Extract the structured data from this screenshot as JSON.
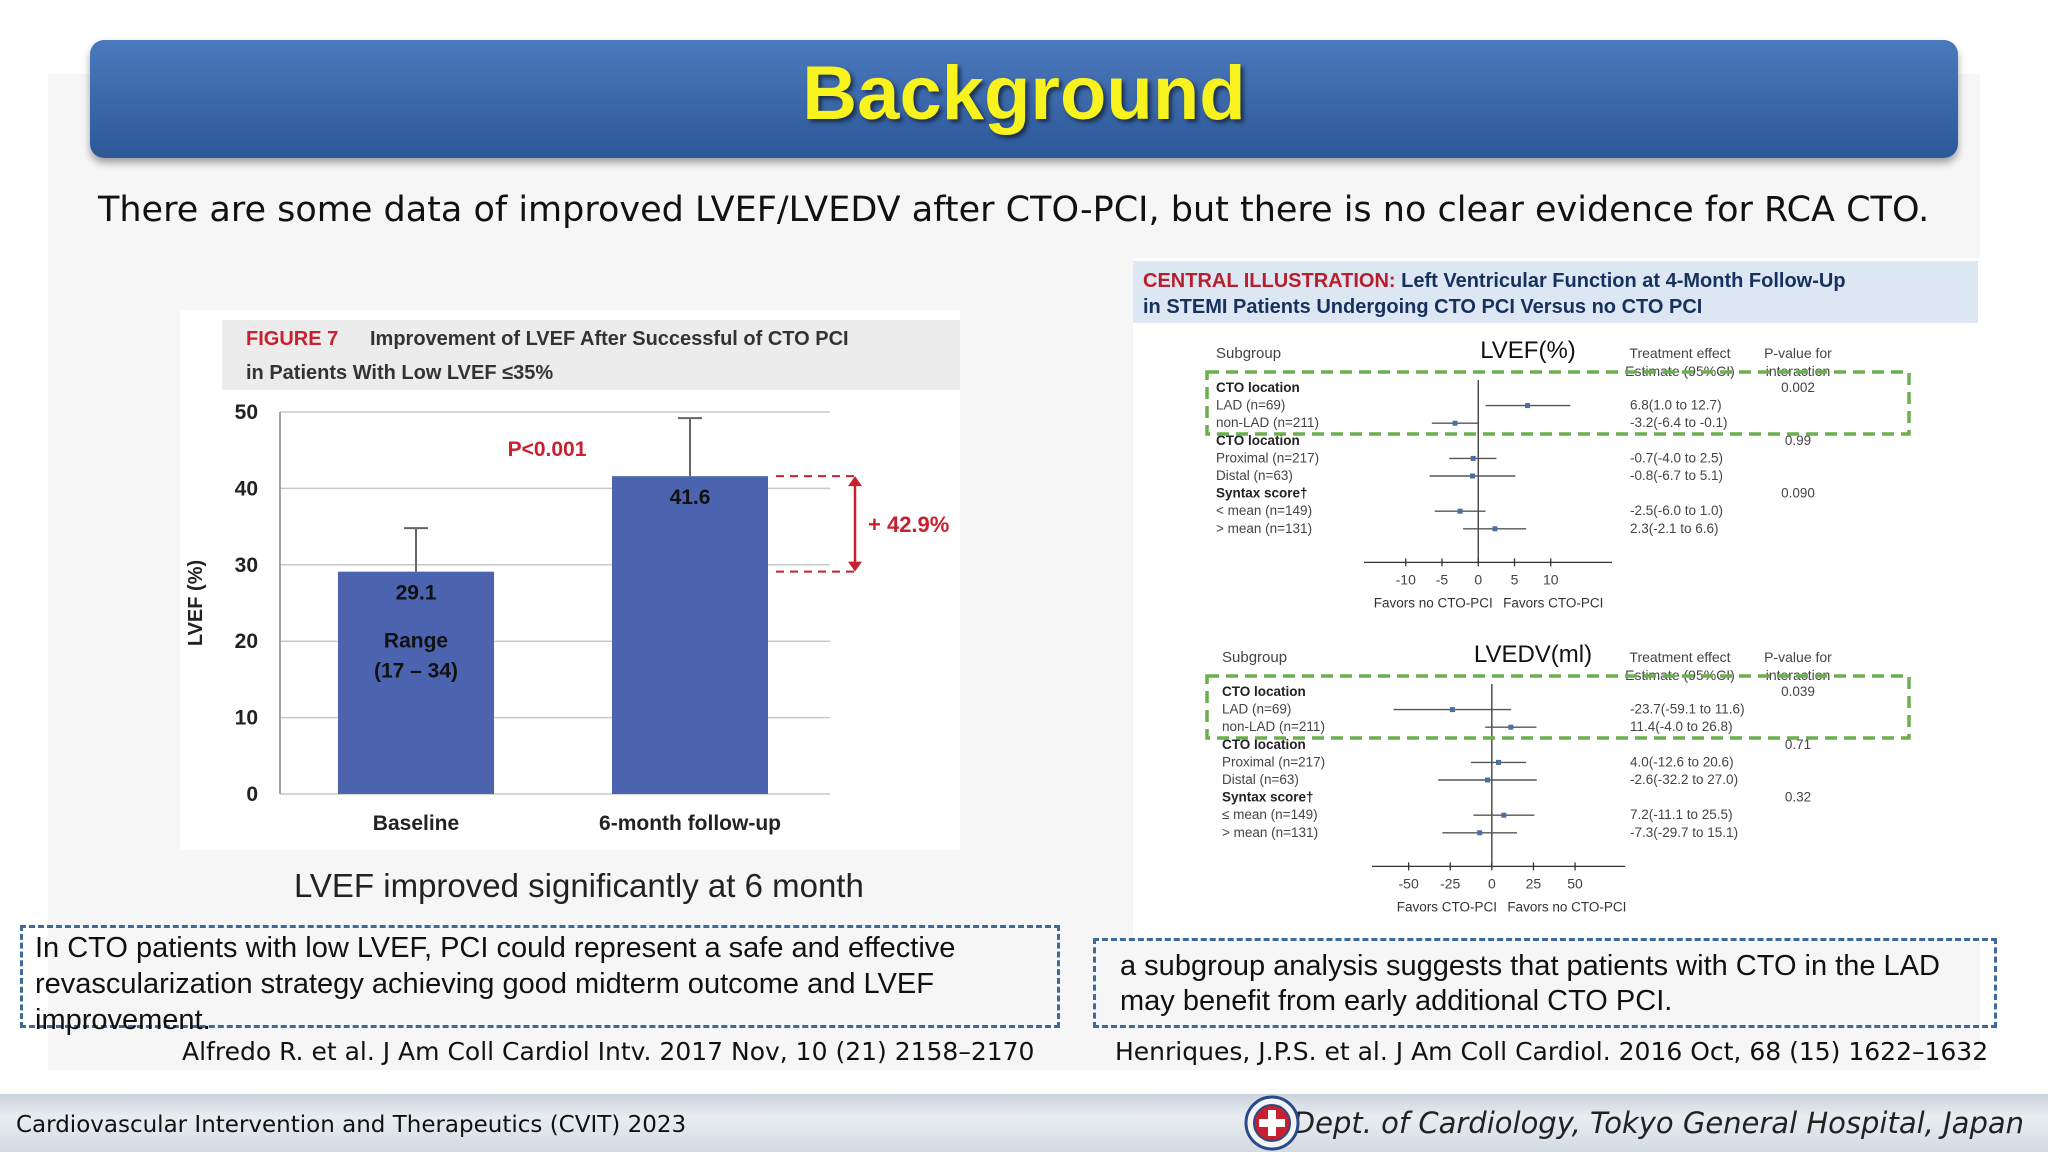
{
  "slide": {
    "title": "Background",
    "subtitle": "There are some data of improved LVEF/LVEDV after CTO-PCI, but there is no clear evidence for RCA CTO.",
    "left_caption": "LVEF improved significantly at 6 month",
    "left_box": "In CTO patients with low LVEF, PCI could represent a safe and effective revascularization strategy achieving good midterm outcome and LVEF improvement.",
    "right_box": "a subgroup analysis suggests that patients with CTO in the LAD may benefit from early additional CTO PCI.",
    "left_ref": "Alfredo R. et al. J Am Coll Cardiol Intv. 2017 Nov, 10 (21) 2158–2170",
    "right_ref": "Henriques, J.P.S. et al.  J Am Coll Cardiol. 2016 Oct, 68 (15) 1622–1632",
    "footer_left": "Cardiovascular Intervention and Therapeutics (CVIT) 2023",
    "footer_right": "Dept. of Cardiology, Tokyo General Hospital, Japan"
  },
  "chart_data": [
    {
      "type": "bar",
      "figure_label": "FIGURE 7",
      "title_line1": "Improvement of LVEF After Successful of CTO PCI",
      "title_line2": "in Patients With Low LVEF ≤35%",
      "categories": [
        "Baseline",
        "6-month follow-up"
      ],
      "values": [
        29.1,
        41.6
      ],
      "value_labels": [
        "29.1",
        "41.6"
      ],
      "error_upper": [
        34.8,
        49.2
      ],
      "range_label_1": "Range",
      "range_label_2": "(17 – 34)",
      "ylabel": "LVEF (%)",
      "yticks": [
        "0",
        "10",
        "20",
        "30",
        "40",
        "50"
      ],
      "ylim": [
        0,
        50
      ],
      "pvalue": "P<0.001",
      "change": "+ 42.9%",
      "colors": {
        "bar": "#4c63b0",
        "accent": "#c8202f"
      }
    },
    {
      "type": "forest",
      "header_red": "CENTRAL ILLUSTRATION:",
      "header_rest": " Left Ventricular Function at 4-Month Follow-Up",
      "header_line2": "in STEMI Patients Undergoing CTO PCI Versus no CTO PCI",
      "col_subgroup": "Subgroup",
      "col_effect_1": "Treatment effect",
      "col_effect_2": "Estimate (95%CI)",
      "col_p_1": "P-value for",
      "col_p_2": "interaction",
      "panels": [
        {
          "title": "LVEF(%)",
          "xticks": [
            "-10",
            "-5",
            "0",
            "5",
            "10"
          ],
          "xlim": [
            -13,
            15
          ],
          "left_label": "Favors no CTO-PCI",
          "right_label": "Favors CTO-PCI",
          "rows": [
            {
              "label": "CTO location",
              "header": true,
              "p": "0.002"
            },
            {
              "label": "LAD (n=69)",
              "est": 6.8,
              "lo": 1.0,
              "hi": 12.7,
              "text": "6.8(1.0 to 12.7)"
            },
            {
              "label": "non-LAD (n=211)",
              "est": -3.2,
              "lo": -6.4,
              "hi": -0.1,
              "text": "-3.2(-6.4 to -0.1)"
            },
            {
              "label": "CTO location",
              "header": true,
              "p": "0.99"
            },
            {
              "label": "Proximal (n=217)",
              "est": -0.7,
              "lo": -4.0,
              "hi": 2.5,
              "text": "-0.7(-4.0 to 2.5)"
            },
            {
              "label": "Distal (n=63)",
              "est": -0.8,
              "lo": -6.7,
              "hi": 5.1,
              "text": "-0.8(-6.7 to 5.1)"
            },
            {
              "label": "Syntax score†",
              "header": true,
              "p": "0.090"
            },
            {
              "label": "< mean (n=149)",
              "est": -2.5,
              "lo": -6.0,
              "hi": 1.0,
              "text": "-2.5(-6.0 to 1.0)"
            },
            {
              "label": "> mean (n=131)",
              "est": 2.3,
              "lo": -2.1,
              "hi": 6.6,
              "text": "2.3(-2.1 to 6.6)"
            }
          ]
        },
        {
          "title": "LVEDV(ml)",
          "xticks": [
            "-50",
            "-25",
            "0",
            "25",
            "50"
          ],
          "xlim": [
            -60,
            65
          ],
          "left_label": "Favors CTO-PCI",
          "right_label": "Favors no CTO-PCI",
          "rows": [
            {
              "label": "CTO location",
              "header": true,
              "p": "0.039"
            },
            {
              "label": "LAD (n=69)",
              "est": -23.7,
              "lo": -59.1,
              "hi": 11.6,
              "text": "-23.7(-59.1 to 11.6)"
            },
            {
              "label": "non-LAD (n=211)",
              "est": 11.4,
              "lo": -4.0,
              "hi": 26.8,
              "text": "11.4(-4.0 to 26.8)"
            },
            {
              "label": "CTO location",
              "header": true,
              "p": "0.71"
            },
            {
              "label": "Proximal (n=217)",
              "est": 4.0,
              "lo": -12.6,
              "hi": 20.6,
              "text": "4.0(-12.6 to 20.6)"
            },
            {
              "label": "Distal (n=63)",
              "est": -2.6,
              "lo": -32.2,
              "hi": 27.0,
              "text": "-2.6(-32.2 to 27.0)"
            },
            {
              "label": "Syntax score†",
              "header": true,
              "p": "0.32"
            },
            {
              "label": "≤ mean (n=149)",
              "est": 7.2,
              "lo": -11.1,
              "hi": 25.5,
              "text": "7.2(-11.1 to 25.5)"
            },
            {
              "label": "> mean (n=131)",
              "est": -7.3,
              "lo": -29.7,
              "hi": 15.1,
              "text": "-7.3(-29.7 to 15.1)"
            }
          ]
        }
      ]
    }
  ]
}
